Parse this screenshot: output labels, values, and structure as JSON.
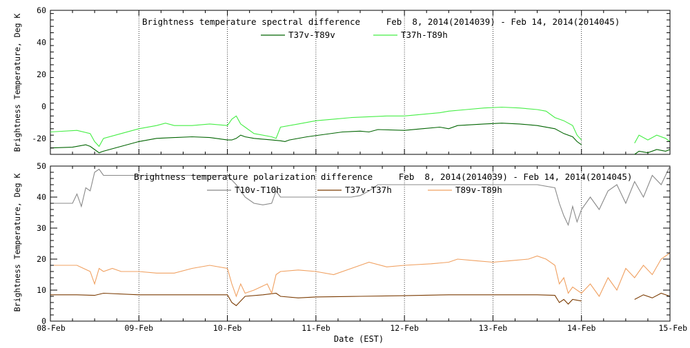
{
  "chart_data": [
    {
      "type": "line",
      "title": "Brightness temperature spectral difference     Feb  8, 2014(2014039) - Feb 14, 2014(2014045)",
      "ylabel": "Brightness Temperature, Deg K",
      "xlabel": "",
      "xlim": [
        0,
        7
      ],
      "ylim": [
        -30,
        60
      ],
      "yticks": [
        -20,
        0,
        20,
        40,
        60
      ],
      "ytick_labels": [
        "-20",
        "0",
        "20",
        "40",
        "60"
      ],
      "grid": "vertical dotted at day boundaries",
      "series": [
        {
          "name": "T37v-T89v",
          "color": "#006400",
          "points": [
            [
              0,
              -26
            ],
            [
              0.25,
              -25.5
            ],
            [
              0.4,
              -24
            ],
            [
              0.45,
              -25
            ],
            [
              0.5,
              -27
            ],
            [
              0.55,
              -29
            ],
            [
              0.6,
              -28
            ],
            [
              0.8,
              -25
            ],
            [
              1.0,
              -22
            ],
            [
              1.2,
              -20
            ],
            [
              1.4,
              -19.5
            ],
            [
              1.6,
              -19
            ],
            [
              1.8,
              -19.5
            ],
            [
              2.0,
              -21
            ],
            [
              2.05,
              -21
            ],
            [
              2.1,
              -20
            ],
            [
              2.15,
              -18
            ],
            [
              2.2,
              -19
            ],
            [
              2.3,
              -20
            ],
            [
              2.5,
              -21
            ],
            [
              2.6,
              -21.5
            ],
            [
              2.65,
              -22
            ],
            [
              2.7,
              -21
            ],
            [
              2.9,
              -19
            ],
            [
              3.1,
              -17.5
            ],
            [
              3.3,
              -16
            ],
            [
              3.5,
              -15.5
            ],
            [
              3.6,
              -16
            ],
            [
              3.7,
              -14.5
            ],
            [
              4.0,
              -15
            ],
            [
              4.2,
              -14
            ],
            [
              4.4,
              -13
            ],
            [
              4.5,
              -14
            ],
            [
              4.6,
              -12
            ],
            [
              4.9,
              -11
            ],
            [
              5.1,
              -10.5
            ],
            [
              5.3,
              -11
            ],
            [
              5.5,
              -12
            ],
            [
              5.7,
              -14
            ],
            [
              5.8,
              -17
            ],
            [
              5.9,
              -19
            ],
            [
              5.95,
              -22
            ],
            [
              6.0,
              -24
            ]
          ],
          "gaps_after": [
            6.0
          ],
          "tail": [
            [
              6.6,
              -30
            ],
            [
              6.65,
              -28
            ],
            [
              6.75,
              -29
            ],
            [
              6.85,
              -27
            ],
            [
              6.95,
              -28
            ],
            [
              7.0,
              -27
            ]
          ]
        },
        {
          "name": "T37h-T89h",
          "color": "#44ee44",
          "points": [
            [
              0,
              -16
            ],
            [
              0.3,
              -15
            ],
            [
              0.45,
              -17
            ],
            [
              0.5,
              -22
            ],
            [
              0.55,
              -25
            ],
            [
              0.6,
              -20
            ],
            [
              0.8,
              -17
            ],
            [
              1.0,
              -14
            ],
            [
              1.2,
              -12
            ],
            [
              1.3,
              -10.5
            ],
            [
              1.4,
              -12
            ],
            [
              1.6,
              -12
            ],
            [
              1.8,
              -11
            ],
            [
              2.0,
              -12
            ],
            [
              2.05,
              -8
            ],
            [
              2.1,
              -6
            ],
            [
              2.15,
              -11
            ],
            [
              2.2,
              -13
            ],
            [
              2.3,
              -17
            ],
            [
              2.5,
              -19
            ],
            [
              2.55,
              -20
            ],
            [
              2.6,
              -13
            ],
            [
              2.8,
              -11
            ],
            [
              3.0,
              -9
            ],
            [
              3.2,
              -8
            ],
            [
              3.4,
              -7
            ],
            [
              3.6,
              -6.5
            ],
            [
              3.8,
              -6
            ],
            [
              4.0,
              -6
            ],
            [
              4.2,
              -5
            ],
            [
              4.4,
              -4
            ],
            [
              4.5,
              -3
            ],
            [
              4.7,
              -2
            ],
            [
              4.9,
              -1
            ],
            [
              5.1,
              -0.5
            ],
            [
              5.3,
              -1
            ],
            [
              5.5,
              -2
            ],
            [
              5.6,
              -3
            ],
            [
              5.7,
              -7
            ],
            [
              5.8,
              -9
            ],
            [
              5.9,
              -12
            ],
            [
              5.95,
              -18
            ],
            [
              6.0,
              -21
            ]
          ],
          "gaps_after": [
            6.0
          ],
          "tail": [
            [
              6.6,
              -23
            ],
            [
              6.65,
              -18
            ],
            [
              6.75,
              -21
            ],
            [
              6.85,
              -18
            ],
            [
              6.95,
              -20
            ],
            [
              7.0,
              -22
            ]
          ]
        }
      ]
    },
    {
      "type": "line",
      "title": "Brightness temperature polarization difference     Feb  8, 2014(2014039) - Feb 14, 2014(2014045)",
      "ylabel": "Brightness Temperature, Deg K",
      "xlabel": "Date (EST)",
      "xlim": [
        0,
        7
      ],
      "ylim": [
        0,
        50
      ],
      "yticks": [
        0,
        10,
        20,
        30,
        40,
        50
      ],
      "ytick_labels": [
        "0",
        "10",
        "20",
        "30",
        "40",
        "50"
      ],
      "xtick_labels": [
        "08-Feb",
        "09-Feb",
        "10-Feb",
        "11-Feb",
        "12-Feb",
        "13-Feb",
        "14-Feb",
        "15-Feb"
      ],
      "grid": "vertical dotted at day boundaries",
      "series": [
        {
          "name": "T10v-T10h",
          "color": "#888888",
          "points": [
            [
              0,
              38
            ],
            [
              0.25,
              38
            ],
            [
              0.3,
              41
            ],
            [
              0.35,
              37
            ],
            [
              0.4,
              43
            ],
            [
              0.45,
              42
            ],
            [
              0.5,
              48
            ],
            [
              0.55,
              49
            ],
            [
              0.6,
              47
            ],
            [
              1.0,
              47
            ],
            [
              1.4,
              47
            ],
            [
              1.8,
              47
            ],
            [
              2.0,
              47
            ],
            [
              2.1,
              44
            ],
            [
              2.2,
              40
            ],
            [
              2.3,
              38
            ],
            [
              2.4,
              37.5
            ],
            [
              2.5,
              38
            ],
            [
              2.55,
              42
            ],
            [
              2.6,
              40
            ],
            [
              2.8,
              40
            ],
            [
              3.0,
              40
            ],
            [
              3.4,
              40
            ],
            [
              3.5,
              40.5
            ],
            [
              3.6,
              42
            ],
            [
              3.7,
              44
            ],
            [
              4.0,
              44
            ],
            [
              4.5,
              44
            ],
            [
              5.0,
              44
            ],
            [
              5.5,
              44
            ],
            [
              5.7,
              43
            ],
            [
              5.75,
              38
            ],
            [
              5.8,
              34
            ],
            [
              5.85,
              31
            ],
            [
              5.9,
              37
            ],
            [
              5.95,
              32
            ],
            [
              6.0,
              36
            ],
            [
              6.1,
              40
            ],
            [
              6.2,
              36
            ],
            [
              6.3,
              42
            ],
            [
              6.4,
              44
            ],
            [
              6.5,
              38
            ],
            [
              6.6,
              45
            ],
            [
              6.7,
              40
            ],
            [
              6.8,
              47
            ],
            [
              6.9,
              44
            ],
            [
              7.0,
              50
            ]
          ]
        },
        {
          "name": "T37v-T37h",
          "color": "#7a3a00",
          "points": [
            [
              0,
              8.5
            ],
            [
              0.3,
              8.5
            ],
            [
              0.5,
              8.3
            ],
            [
              0.6,
              9
            ],
            [
              1.0,
              8.5
            ],
            [
              1.5,
              8.5
            ],
            [
              2.0,
              8.5
            ],
            [
              2.05,
              6
            ],
            [
              2.1,
              5
            ],
            [
              2.15,
              6.5
            ],
            [
              2.2,
              8
            ],
            [
              2.4,
              8.5
            ],
            [
              2.55,
              9
            ],
            [
              2.6,
              8
            ],
            [
              2.8,
              7.5
            ],
            [
              3.0,
              7.8
            ],
            [
              3.5,
              8
            ],
            [
              4.0,
              8.2
            ],
            [
              4.5,
              8.5
            ],
            [
              5.0,
              8.5
            ],
            [
              5.5,
              8.5
            ],
            [
              5.7,
              8.3
            ],
            [
              5.75,
              6
            ],
            [
              5.8,
              7
            ],
            [
              5.85,
              5.5
            ],
            [
              5.9,
              7
            ],
            [
              6.0,
              6.5
            ]
          ],
          "gaps_after": [
            6.0
          ],
          "tail": [
            [
              6.6,
              7
            ],
            [
              6.7,
              8.5
            ],
            [
              6.8,
              7.5
            ],
            [
              6.9,
              9
            ],
            [
              7.0,
              8
            ]
          ]
        },
        {
          "name": "T89v-T89h",
          "color": "#f0a060",
          "points": [
            [
              0,
              18
            ],
            [
              0.3,
              18
            ],
            [
              0.45,
              16
            ],
            [
              0.5,
              12
            ],
            [
              0.55,
              17
            ],
            [
              0.6,
              16
            ],
            [
              0.7,
              17
            ],
            [
              0.8,
              16
            ],
            [
              1.0,
              16
            ],
            [
              1.2,
              15.5
            ],
            [
              1.4,
              15.5
            ],
            [
              1.6,
              17
            ],
            [
              1.8,
              18
            ],
            [
              2.0,
              17
            ],
            [
              2.05,
              12
            ],
            [
              2.1,
              8
            ],
            [
              2.15,
              12
            ],
            [
              2.2,
              9
            ],
            [
              2.3,
              10
            ],
            [
              2.45,
              12
            ],
            [
              2.5,
              9
            ],
            [
              2.55,
              15
            ],
            [
              2.6,
              16
            ],
            [
              2.8,
              16.5
            ],
            [
              3.0,
              16
            ],
            [
              3.2,
              15
            ],
            [
              3.4,
              17
            ],
            [
              3.5,
              18
            ],
            [
              3.6,
              19
            ],
            [
              3.8,
              17.5
            ],
            [
              4.0,
              18
            ],
            [
              4.3,
              18.5
            ],
            [
              4.5,
              19
            ],
            [
              4.6,
              20
            ],
            [
              4.8,
              19.5
            ],
            [
              5.0,
              19
            ],
            [
              5.2,
              19.5
            ],
            [
              5.4,
              20
            ],
            [
              5.5,
              21
            ],
            [
              5.6,
              20
            ],
            [
              5.7,
              18
            ],
            [
              5.75,
              12
            ],
            [
              5.8,
              14
            ],
            [
              5.85,
              9
            ],
            [
              5.9,
              11
            ],
            [
              6.0,
              9
            ],
            [
              6.1,
              12
            ],
            [
              6.2,
              8
            ],
            [
              6.3,
              14
            ],
            [
              6.4,
              10
            ],
            [
              6.5,
              17
            ],
            [
              6.6,
              14
            ],
            [
              6.7,
              18
            ],
            [
              6.8,
              15
            ],
            [
              6.9,
              20
            ],
            [
              7.0,
              22
            ]
          ]
        }
      ]
    }
  ]
}
